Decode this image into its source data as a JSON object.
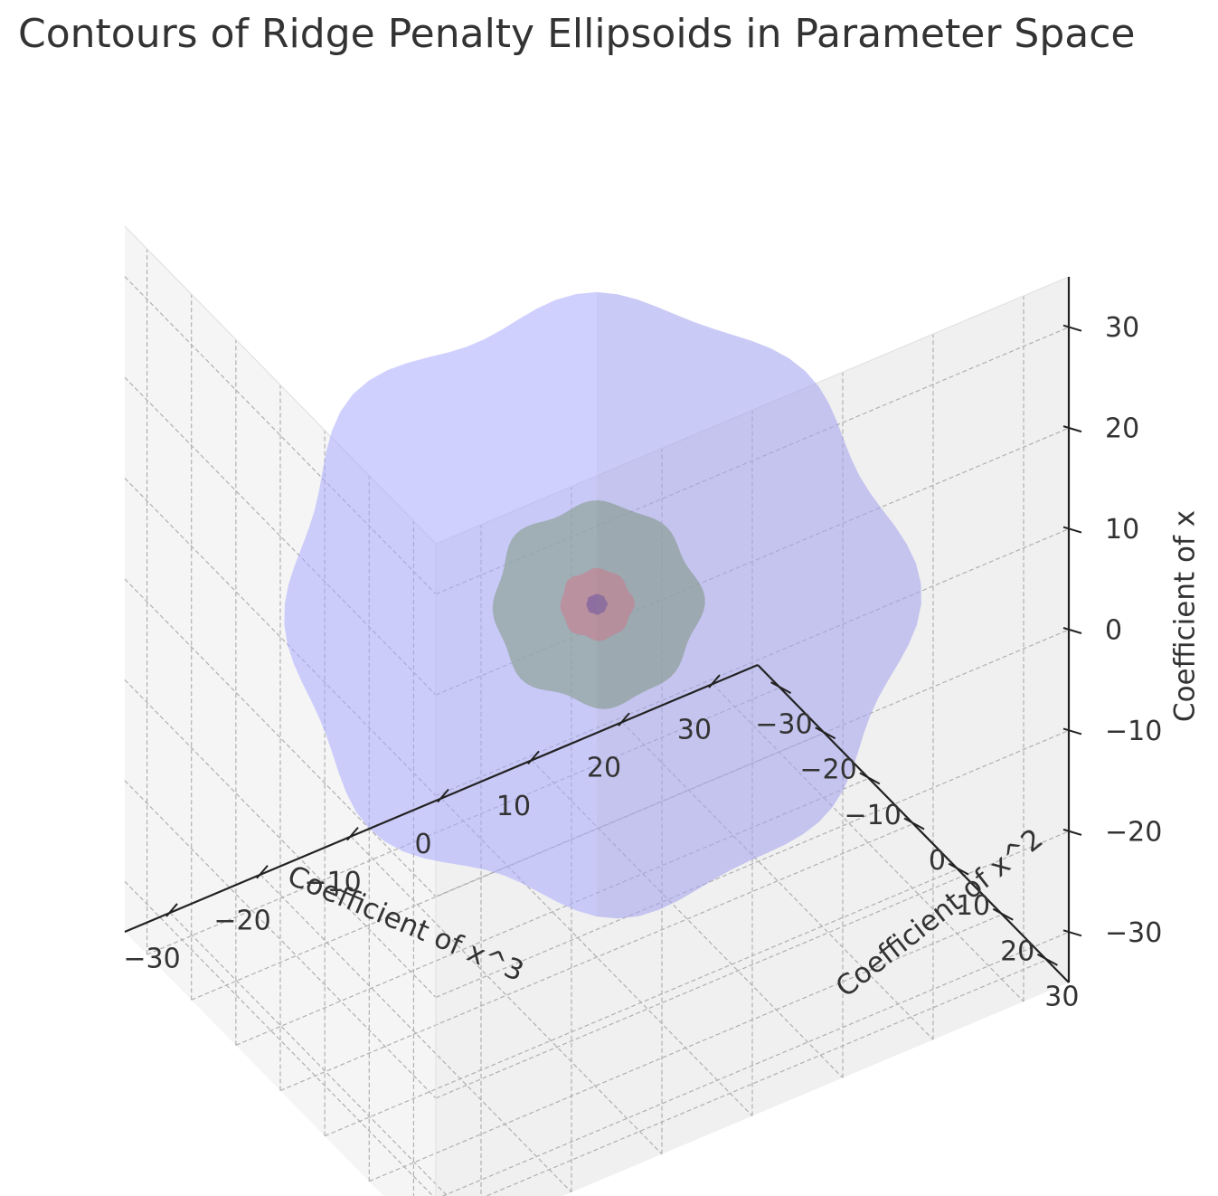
{
  "chart_data": {
    "type": "surface3d",
    "title": "Contours of Ridge Penalty Ellipsoids in Parameter Space",
    "axes": {
      "x": {
        "label": "Coefficient of x^3",
        "range": [
          -35,
          35
        ],
        "ticks": [
          -30,
          -20,
          -10,
          0,
          10,
          20,
          30
        ]
      },
      "y": {
        "label": "Coefficient of x^2",
        "range": [
          -35,
          35
        ],
        "ticks": [
          -30,
          -20,
          -10,
          0,
          10,
          20,
          30
        ]
      },
      "z": {
        "label": "Coefficient of x",
        "range": [
          -35,
          35
        ],
        "ticks": [
          -30,
          -20,
          -10,
          0,
          10,
          20,
          30
        ]
      }
    },
    "grid": true,
    "center": [
      0,
      0,
      0
    ],
    "surfaces": [
      {
        "radius": 30,
        "color": "#aaaaff",
        "opacity": 0.55
      },
      {
        "radius": 10,
        "color": "#8fa39a",
        "opacity": 0.7
      },
      {
        "radius": 3.5,
        "color": "#c08a98",
        "opacity": 0.8
      },
      {
        "radius": 1,
        "color": "#8a6aa0",
        "opacity": 0.9
      }
    ]
  }
}
